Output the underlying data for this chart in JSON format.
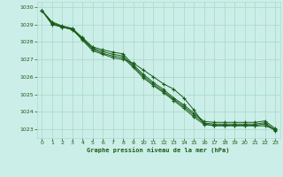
{
  "bg_color": "#cceee8",
  "grid_color": "#aaddcc",
  "line_color": "#1a5c1a",
  "marker_color": "#1a5c1a",
  "xlabel": "Graphe pression niveau de la mer (hPa)",
  "xlabel_color": "#1a5c1a",
  "xtick_color": "#1a5c1a",
  "ytick_color": "#1a5c1a",
  "xlim": [
    -0.5,
    23.5
  ],
  "ylim": [
    1022.5,
    1030.3
  ],
  "yticks": [
    1023,
    1024,
    1025,
    1026,
    1027,
    1028,
    1029,
    1030
  ],
  "xticks": [
    0,
    1,
    2,
    3,
    4,
    5,
    6,
    7,
    8,
    9,
    10,
    11,
    12,
    13,
    14,
    15,
    16,
    17,
    18,
    19,
    20,
    21,
    22,
    23
  ],
  "series": [
    [
      1029.8,
      1029.0,
      1028.85,
      1028.75,
      1028.1,
      1027.5,
      1027.3,
      1027.1,
      1027.0,
      1026.8,
      1026.4,
      1026.0,
      1025.6,
      1025.3,
      1024.8,
      1024.1,
      1023.3,
      1023.2,
      1023.2,
      1023.2,
      1023.2,
      1023.2,
      1023.2,
      1023.0
    ],
    [
      1029.8,
      1029.05,
      1028.85,
      1028.7,
      1028.15,
      1027.6,
      1027.35,
      1027.2,
      1027.1,
      1026.55,
      1025.95,
      1025.5,
      1025.1,
      1024.65,
      1024.2,
      1023.7,
      1023.28,
      1023.23,
      1023.23,
      1023.23,
      1023.23,
      1023.23,
      1023.3,
      1022.92
    ],
    [
      1029.8,
      1029.1,
      1028.88,
      1028.72,
      1028.2,
      1027.65,
      1027.45,
      1027.3,
      1027.2,
      1026.62,
      1026.05,
      1025.58,
      1025.18,
      1024.72,
      1024.3,
      1023.82,
      1023.36,
      1023.3,
      1023.3,
      1023.3,
      1023.3,
      1023.3,
      1023.38,
      1022.96
    ],
    [
      1029.8,
      1029.15,
      1028.92,
      1028.78,
      1028.25,
      1027.72,
      1027.55,
      1027.42,
      1027.32,
      1026.7,
      1026.15,
      1025.68,
      1025.28,
      1024.8,
      1024.4,
      1023.92,
      1023.45,
      1023.4,
      1023.4,
      1023.4,
      1023.4,
      1023.4,
      1023.48,
      1023.05
    ]
  ]
}
